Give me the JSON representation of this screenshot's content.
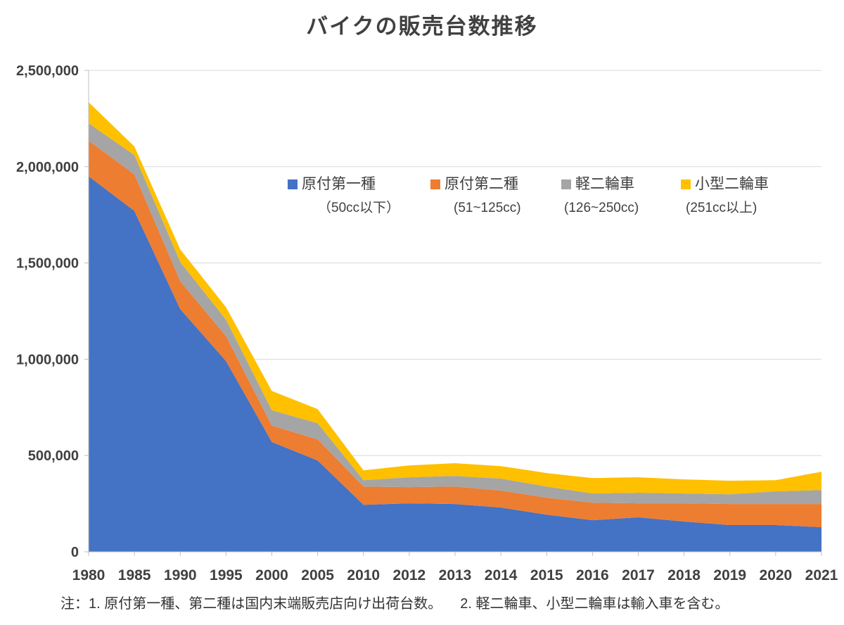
{
  "title": "バイクの販売台数推移",
  "notes": [
    "注：1. 原付第一種、第二種は国内末端販売店向け出荷台数。",
    "2. 軽二輪車、小型二輪車は輸入車を含む。"
  ],
  "axis": {
    "y_tick_labels": [
      "0",
      "500,000",
      "1,000,000",
      "1,500,000",
      "2,000,000",
      "2,500,000"
    ]
  },
  "colors": {
    "grid": "#D9D9D9",
    "axis": "#BFBFBF",
    "label": "#404040"
  },
  "chart_data": {
    "type": "area",
    "stacked": true,
    "title": "バイクの販売台数推移",
    "categories": [
      "1980",
      "1985",
      "1990",
      "1995",
      "2000",
      "2005",
      "2010",
      "2012",
      "2013",
      "2014",
      "2015",
      "2016",
      "2017",
      "2018",
      "2019",
      "2020",
      "2021"
    ],
    "series": [
      {
        "name": "原付第一種",
        "sublabel": "（50cc以下）",
        "color": "#4472C4",
        "values": [
          1950000,
          1770000,
          1260000,
          990000,
          570000,
          474000,
          244000,
          252000,
          248000,
          230000,
          193000,
          164000,
          179000,
          157000,
          139000,
          139000,
          128000
        ]
      },
      {
        "name": "原付第二種",
        "sublabel": "(51~125cc)",
        "color": "#ED7D31",
        "values": [
          185000,
          190000,
          145000,
          130000,
          85000,
          110000,
          95000,
          84000,
          91000,
          88000,
          88000,
          91000,
          73000,
          95000,
          109000,
          109000,
          120000
        ]
      },
      {
        "name": "軽二輪車",
        "sublabel": "(126~250cc)",
        "color": "#A5A5A5",
        "values": [
          90000,
          100000,
          100000,
          85000,
          80000,
          84000,
          33000,
          51000,
          55000,
          62000,
          58000,
          48000,
          55000,
          51000,
          51000,
          66000,
          73000
        ]
      },
      {
        "name": "小型二輪車",
        "sublabel": "(251cc以上)",
        "color": "#FFC000",
        "values": [
          110000,
          45000,
          65000,
          65000,
          100000,
          73000,
          51000,
          62000,
          66000,
          65000,
          70000,
          80000,
          80000,
          73000,
          70000,
          58000,
          95000
        ]
      }
    ],
    "ylim": [
      0,
      2500000
    ],
    "y_tick_step": 500000,
    "grid": "horizontal",
    "legend_position": "inside-top"
  }
}
